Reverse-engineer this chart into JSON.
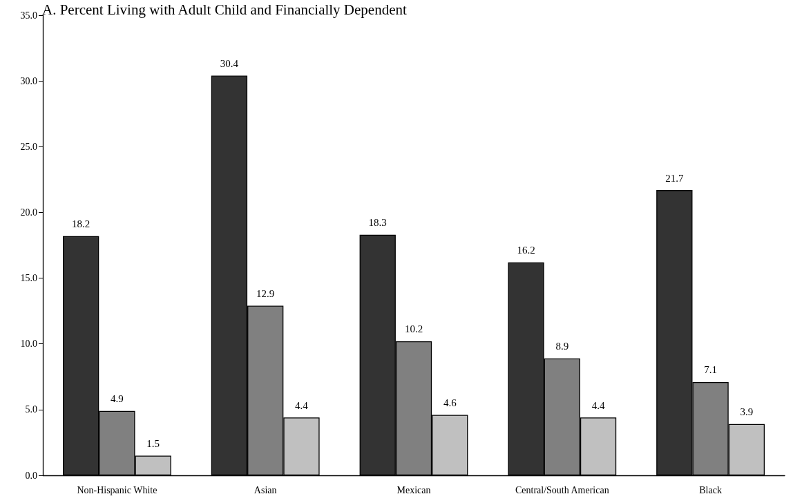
{
  "chart_data": {
    "type": "bar",
    "title": "A. Percent Living with Adult Child and Financially Dependent",
    "categories": [
      "Non-Hispanic White",
      "Asian",
      "Mexican",
      "Central/South American",
      "Black"
    ],
    "series": [
      {
        "color": "#333333",
        "values": [
          18.2,
          30.4,
          18.3,
          16.2,
          21.7
        ]
      },
      {
        "color": "#808080",
        "values": [
          4.9,
          12.9,
          10.2,
          8.9,
          7.1
        ]
      },
      {
        "color": "#c0c0c0",
        "values": [
          1.5,
          4.4,
          4.6,
          4.4,
          3.9
        ]
      }
    ],
    "ylim": [
      0,
      35
    ],
    "yticks": [
      {
        "value": 0,
        "label": "0.0"
      },
      {
        "value": 5,
        "label": "5.0"
      },
      {
        "value": 10,
        "label": "10.0"
      },
      {
        "value": 15,
        "label": "15.0"
      },
      {
        "value": 20,
        "label": "20.0"
      },
      {
        "value": 25,
        "label": "25.0"
      },
      {
        "value": 30,
        "label": "30.0"
      },
      {
        "value": 35,
        "label": "35.0"
      }
    ],
    "data_labels": true,
    "grid": false
  }
}
